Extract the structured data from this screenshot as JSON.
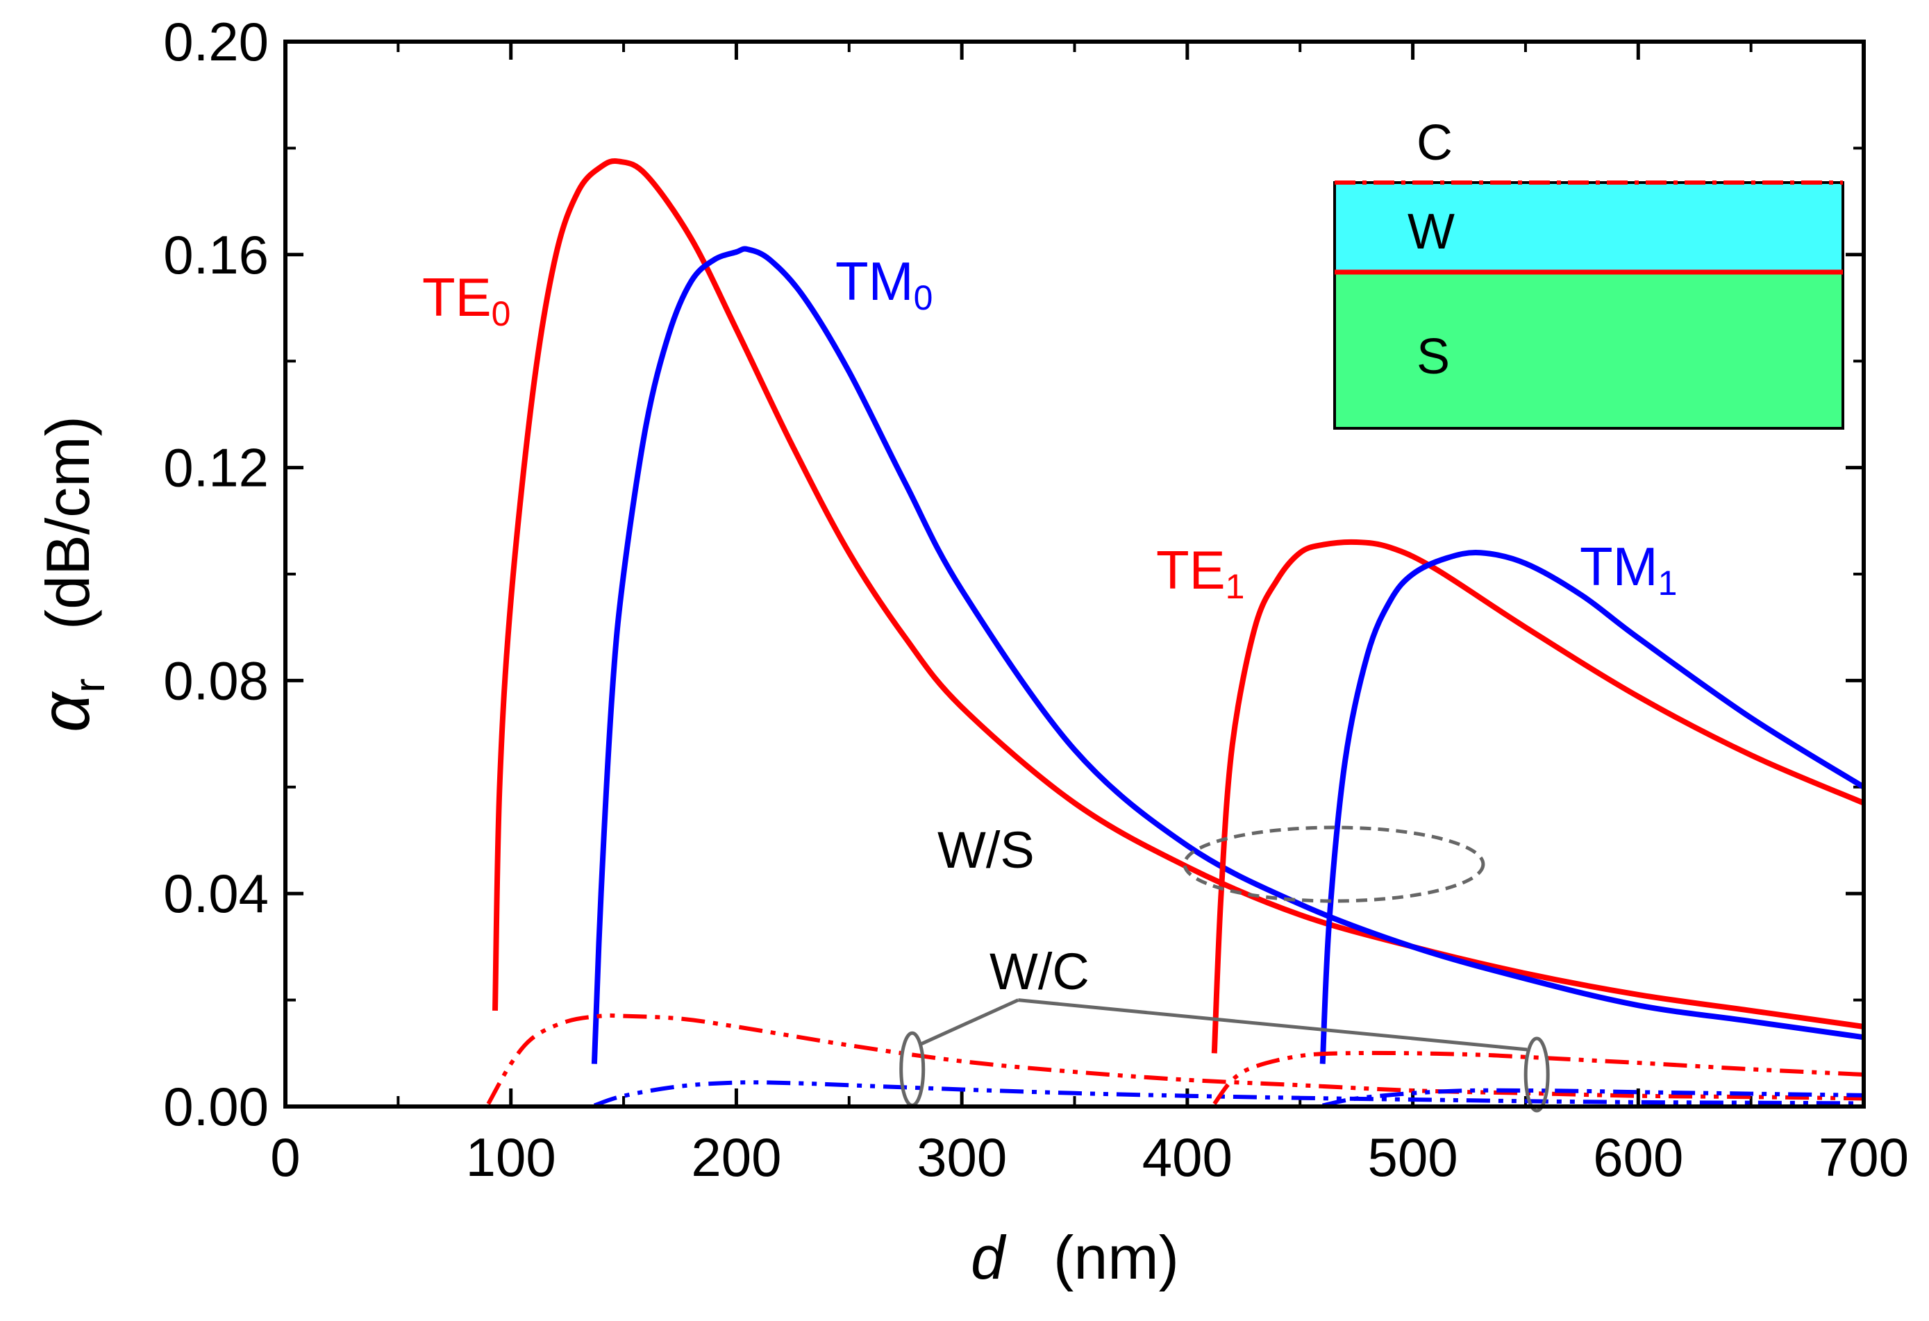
{
  "chart_data": {
    "type": "line",
    "xlabel_symbol": "d",
    "xlabel_unit": "(nm)",
    "ylabel_symbol": "α",
    "ylabel_sub": "r",
    "ylabel_unit": "(dB/cm)",
    "xlim": [
      0,
      700
    ],
    "ylim": [
      0.0,
      0.2
    ],
    "x_ticks": [
      {
        "value": 0,
        "label": "0"
      },
      {
        "value": 100,
        "label": "100"
      },
      {
        "value": 200,
        "label": "200"
      },
      {
        "value": 300,
        "label": "300"
      },
      {
        "value": 400,
        "label": "400"
      },
      {
        "value": 500,
        "label": "500"
      },
      {
        "value": 600,
        "label": "600"
      },
      {
        "value": 700,
        "label": "700"
      }
    ],
    "y_ticks": [
      {
        "value": 0.0,
        "label": "0.00"
      },
      {
        "value": 0.04,
        "label": "0.04"
      },
      {
        "value": 0.08,
        "label": "0.08"
      },
      {
        "value": 0.12,
        "label": "0.12"
      },
      {
        "value": 0.16,
        "label": "0.16"
      },
      {
        "value": 0.2,
        "label": "0.20"
      }
    ],
    "series": [
      {
        "id": "te0-ws",
        "mode": "TE0",
        "interface": "W/S",
        "color": "#ff0000",
        "dash": "solid",
        "x": [
          93,
          95,
          100,
          110,
          120,
          130,
          140,
          148,
          160,
          180,
          200,
          225,
          250,
          275,
          300,
          350,
          400,
          450,
          500,
          550,
          600,
          650,
          700
        ],
        "y": [
          0.018,
          0.06,
          0.095,
          0.135,
          0.16,
          0.172,
          0.1765,
          0.1775,
          0.175,
          0.163,
          0.146,
          0.124,
          0.104,
          0.088,
          0.075,
          0.057,
          0.045,
          0.036,
          0.03,
          0.025,
          0.021,
          0.018,
          0.015
        ]
      },
      {
        "id": "tm0-ws",
        "mode": "TM0",
        "interface": "W/S",
        "color": "#0000ff",
        "dash": "solid",
        "x": [
          137,
          140,
          145,
          150,
          160,
          170,
          180,
          190,
          200,
          205,
          215,
          230,
          250,
          275,
          300,
          350,
          400,
          450,
          500,
          550,
          600,
          650,
          700
        ],
        "y": [
          0.008,
          0.04,
          0.078,
          0.1,
          0.128,
          0.145,
          0.155,
          0.159,
          0.1605,
          0.161,
          0.159,
          0.152,
          0.138,
          0.117,
          0.097,
          0.067,
          0.049,
          0.038,
          0.03,
          0.024,
          0.019,
          0.016,
          0.013
        ]
      },
      {
        "id": "te1-ws",
        "mode": "TE1",
        "interface": "W/S",
        "color": "#ff0000",
        "dash": "solid",
        "x": [
          412,
          415,
          420,
          430,
          440,
          450,
          460,
          475,
          490,
          510,
          550,
          600,
          650,
          700
        ],
        "y": [
          0.01,
          0.04,
          0.068,
          0.09,
          0.099,
          0.104,
          0.1055,
          0.106,
          0.105,
          0.101,
          0.09,
          0.077,
          0.066,
          0.057
        ]
      },
      {
        "id": "tm1-ws",
        "mode": "TM1",
        "interface": "W/S",
        "color": "#0000ff",
        "dash": "solid",
        "x": [
          460,
          463,
          470,
          480,
          490,
          500,
          515,
          530,
          550,
          575,
          600,
          650,
          700
        ],
        "y": [
          0.008,
          0.035,
          0.065,
          0.085,
          0.095,
          0.1,
          0.103,
          0.104,
          0.102,
          0.096,
          0.088,
          0.073,
          0.06
        ]
      },
      {
        "id": "te0-wc",
        "mode": "TE0",
        "interface": "W/C",
        "color": "#ff0000",
        "dash": "dashdotdot",
        "x": [
          90,
          100,
          110,
          125,
          140,
          150,
          175,
          200,
          250,
          300,
          350,
          400,
          450,
          500,
          550,
          600,
          650,
          700
        ],
        "y": [
          0.0005,
          0.008,
          0.013,
          0.016,
          0.017,
          0.017,
          0.0165,
          0.015,
          0.0115,
          0.0085,
          0.0065,
          0.005,
          0.004,
          0.003,
          0.0025,
          0.002,
          0.0018,
          0.0015
        ]
      },
      {
        "id": "tm0-wc",
        "mode": "TM0",
        "interface": "W/C",
        "color": "#0000ff",
        "dash": "dashdotdot",
        "x": [
          137,
          150,
          175,
          200,
          225,
          250,
          300,
          350,
          400,
          450,
          500,
          550,
          600,
          650,
          700
        ],
        "y": [
          0.0002,
          0.002,
          0.0038,
          0.0045,
          0.0044,
          0.004,
          0.0032,
          0.0025,
          0.002,
          0.0016,
          0.0013,
          0.001,
          0.0008,
          0.0007,
          0.0006
        ]
      },
      {
        "id": "te1-wc",
        "mode": "TE1",
        "interface": "W/C",
        "color": "#ff0000",
        "dash": "dashdotdot",
        "x": [
          412,
          420,
          430,
          450,
          470,
          500,
          530,
          550,
          600,
          650,
          700
        ],
        "y": [
          0.0005,
          0.005,
          0.0075,
          0.0095,
          0.01,
          0.01,
          0.0097,
          0.0093,
          0.0082,
          0.007,
          0.006
        ]
      },
      {
        "id": "tm1-wc",
        "mode": "TM1",
        "interface": "W/C",
        "color": "#0000ff",
        "dash": "dashdotdot",
        "x": [
          460,
          475,
          500,
          525,
          550,
          575,
          600,
          650,
          700
        ],
        "y": [
          0.0002,
          0.0015,
          0.0025,
          0.003,
          0.003,
          0.0029,
          0.0027,
          0.0024,
          0.0021
        ]
      }
    ],
    "mode_labels": [
      {
        "id": "te0",
        "main": "TE",
        "sub": "0",
        "color": "#ff0000"
      },
      {
        "id": "tm0",
        "main": "TM",
        "sub": "0",
        "color": "#0000ff"
      },
      {
        "id": "te1",
        "main": "TE",
        "sub": "1",
        "color": "#ff0000"
      },
      {
        "id": "tm1",
        "main": "TM",
        "sub": "1",
        "color": "#0000ff"
      }
    ],
    "annotations": {
      "ws_label": "W/S",
      "wc_label": "W/C",
      "ws_ellipse_center": {
        "x": 465,
        "y": 0.0455
      },
      "wc_ellipses": [
        {
          "x": 278,
          "y": 0.007
        },
        {
          "x": 555,
          "y": 0.006
        }
      ],
      "wc_label_anchor": {
        "x": 325,
        "y": 0.02
      }
    },
    "inset": {
      "cover_label": "C",
      "film_label": "W",
      "substrate_label": "S",
      "film_color": "#44ffff",
      "substrate_color": "#44ff88",
      "interface_color": "#ff0000"
    }
  }
}
